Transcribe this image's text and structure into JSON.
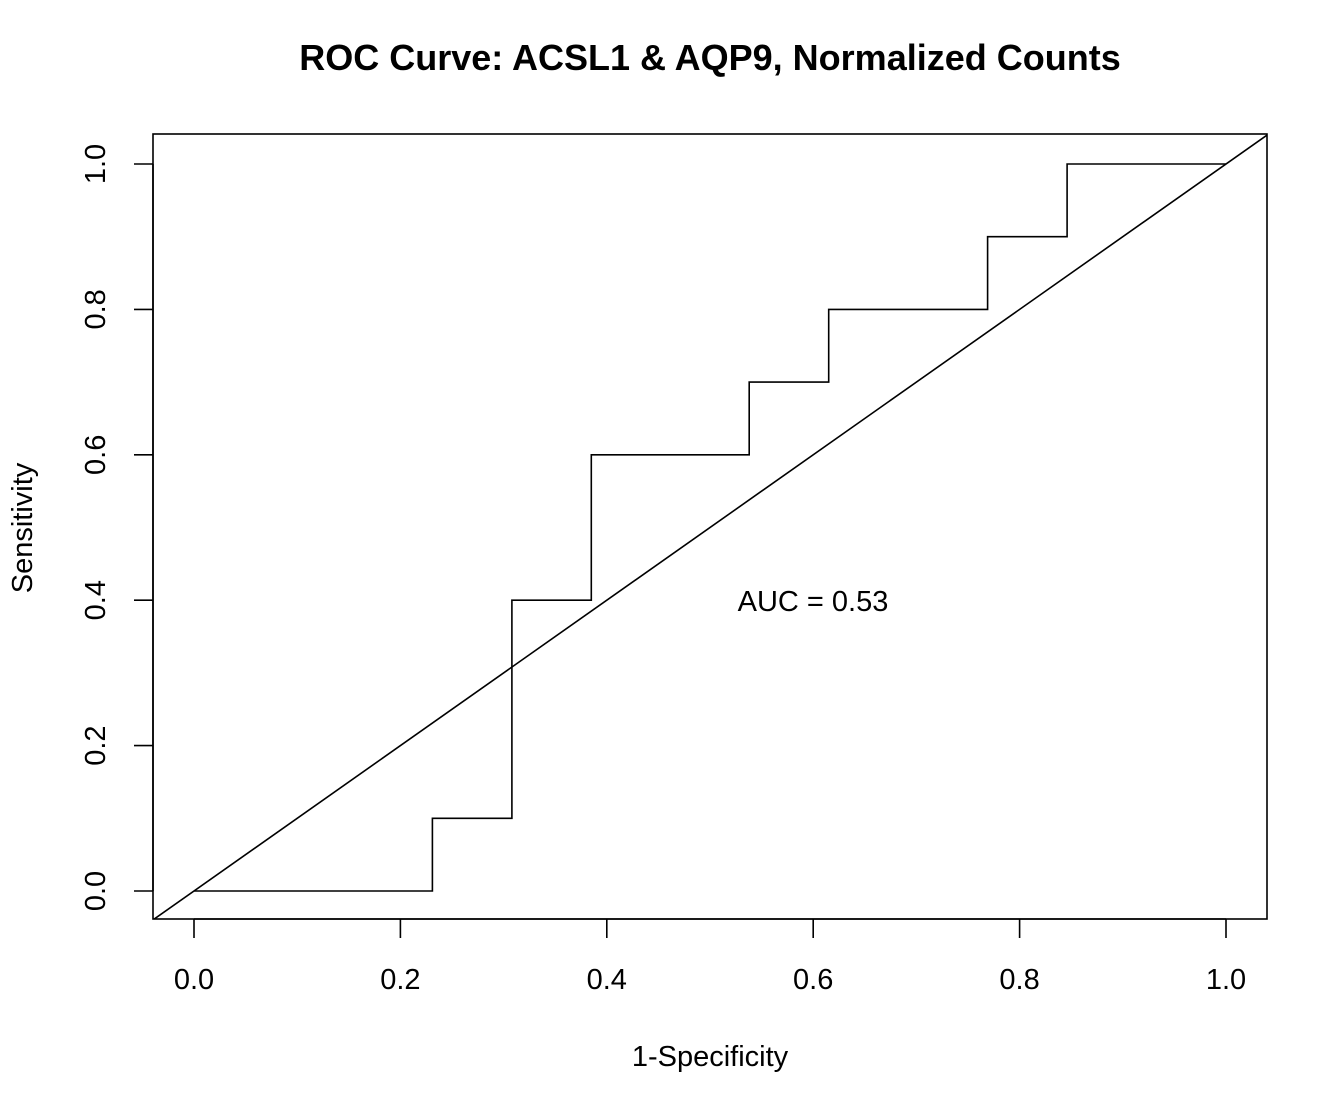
{
  "chart_data": {
    "type": "line",
    "title": "ROC Curve: ACSL1 & AQP9, Normalized Counts",
    "xlabel": "1-Specificity",
    "ylabel": "Sensitivity",
    "xlim": [
      0,
      1
    ],
    "ylim": [
      0,
      1
    ],
    "x_ticks": [
      "0.0",
      "0.2",
      "0.4",
      "0.6",
      "0.8",
      "1.0"
    ],
    "y_ticks": [
      "0.0",
      "0.2",
      "0.4",
      "0.6",
      "0.8",
      "1.0"
    ],
    "grid": false,
    "annotation": "AUC =  0.53",
    "annotation_position": {
      "x": 0.6,
      "y": 0.4
    },
    "series": [
      {
        "x": [
          0,
          0.231,
          0.231,
          0.308,
          0.308,
          0.385,
          0.385,
          0.538,
          0.538,
          0.615,
          0.615,
          0.769,
          0.769,
          0.846,
          0.846,
          1.0
        ],
        "y": [
          0,
          0,
          0.1,
          0.1,
          0.4,
          0.4,
          0.6,
          0.6,
          0.7,
          0.7,
          0.8,
          0.8,
          0.9,
          0.9,
          1.0,
          1.0
        ]
      }
    ],
    "reference_line": {
      "x": [
        0,
        1
      ],
      "y": [
        0,
        1
      ]
    },
    "colors": {
      "curve": "#000000",
      "reference": "#000000",
      "axis": "#000000"
    }
  }
}
